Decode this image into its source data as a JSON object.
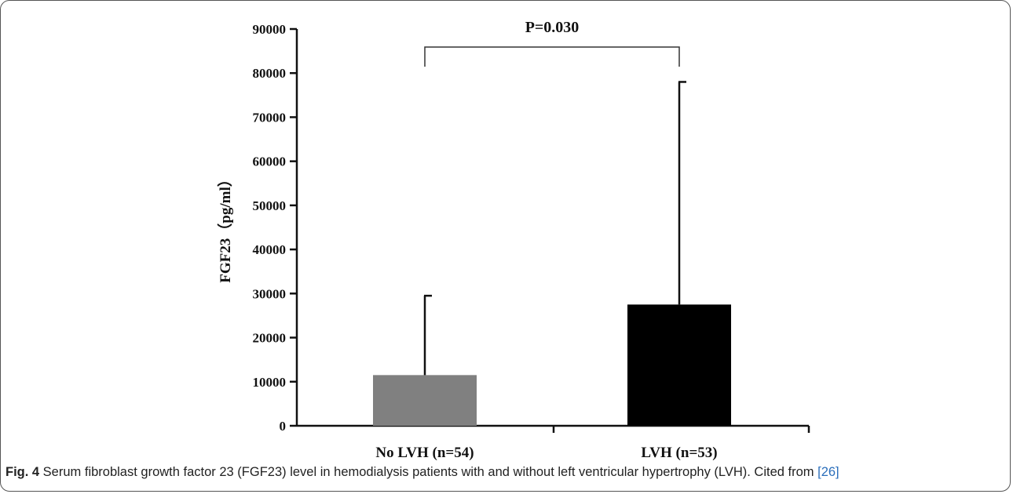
{
  "chart_data": {
    "type": "bar",
    "categories": [
      "No LVH (n=54)",
      "LVH (n=53)"
    ],
    "values": [
      11500,
      27500
    ],
    "error_upper": [
      29500,
      78000
    ],
    "bar_colors": [
      "#808080",
      "#000000"
    ],
    "ylabel": "FGF23（pg/ml）",
    "ylim": [
      0,
      90000
    ],
    "yticks": [
      "0",
      "10000",
      "20000",
      "30000",
      "40000",
      "50000",
      "60000",
      "70000",
      "80000",
      "90000"
    ],
    "yticks_values": [
      0,
      10000,
      20000,
      30000,
      40000,
      50000,
      60000,
      70000,
      80000,
      90000
    ],
    "annotation": "P=0.030",
    "grid": false
  },
  "caption": {
    "fig_label": "Fig. 4",
    "text": " Serum fibroblast growth factor 23 (FGF23) level in hemodialysis patients with and without left ventricular hypertrophy (LVH). Cited from ",
    "ref": "[26]"
  }
}
